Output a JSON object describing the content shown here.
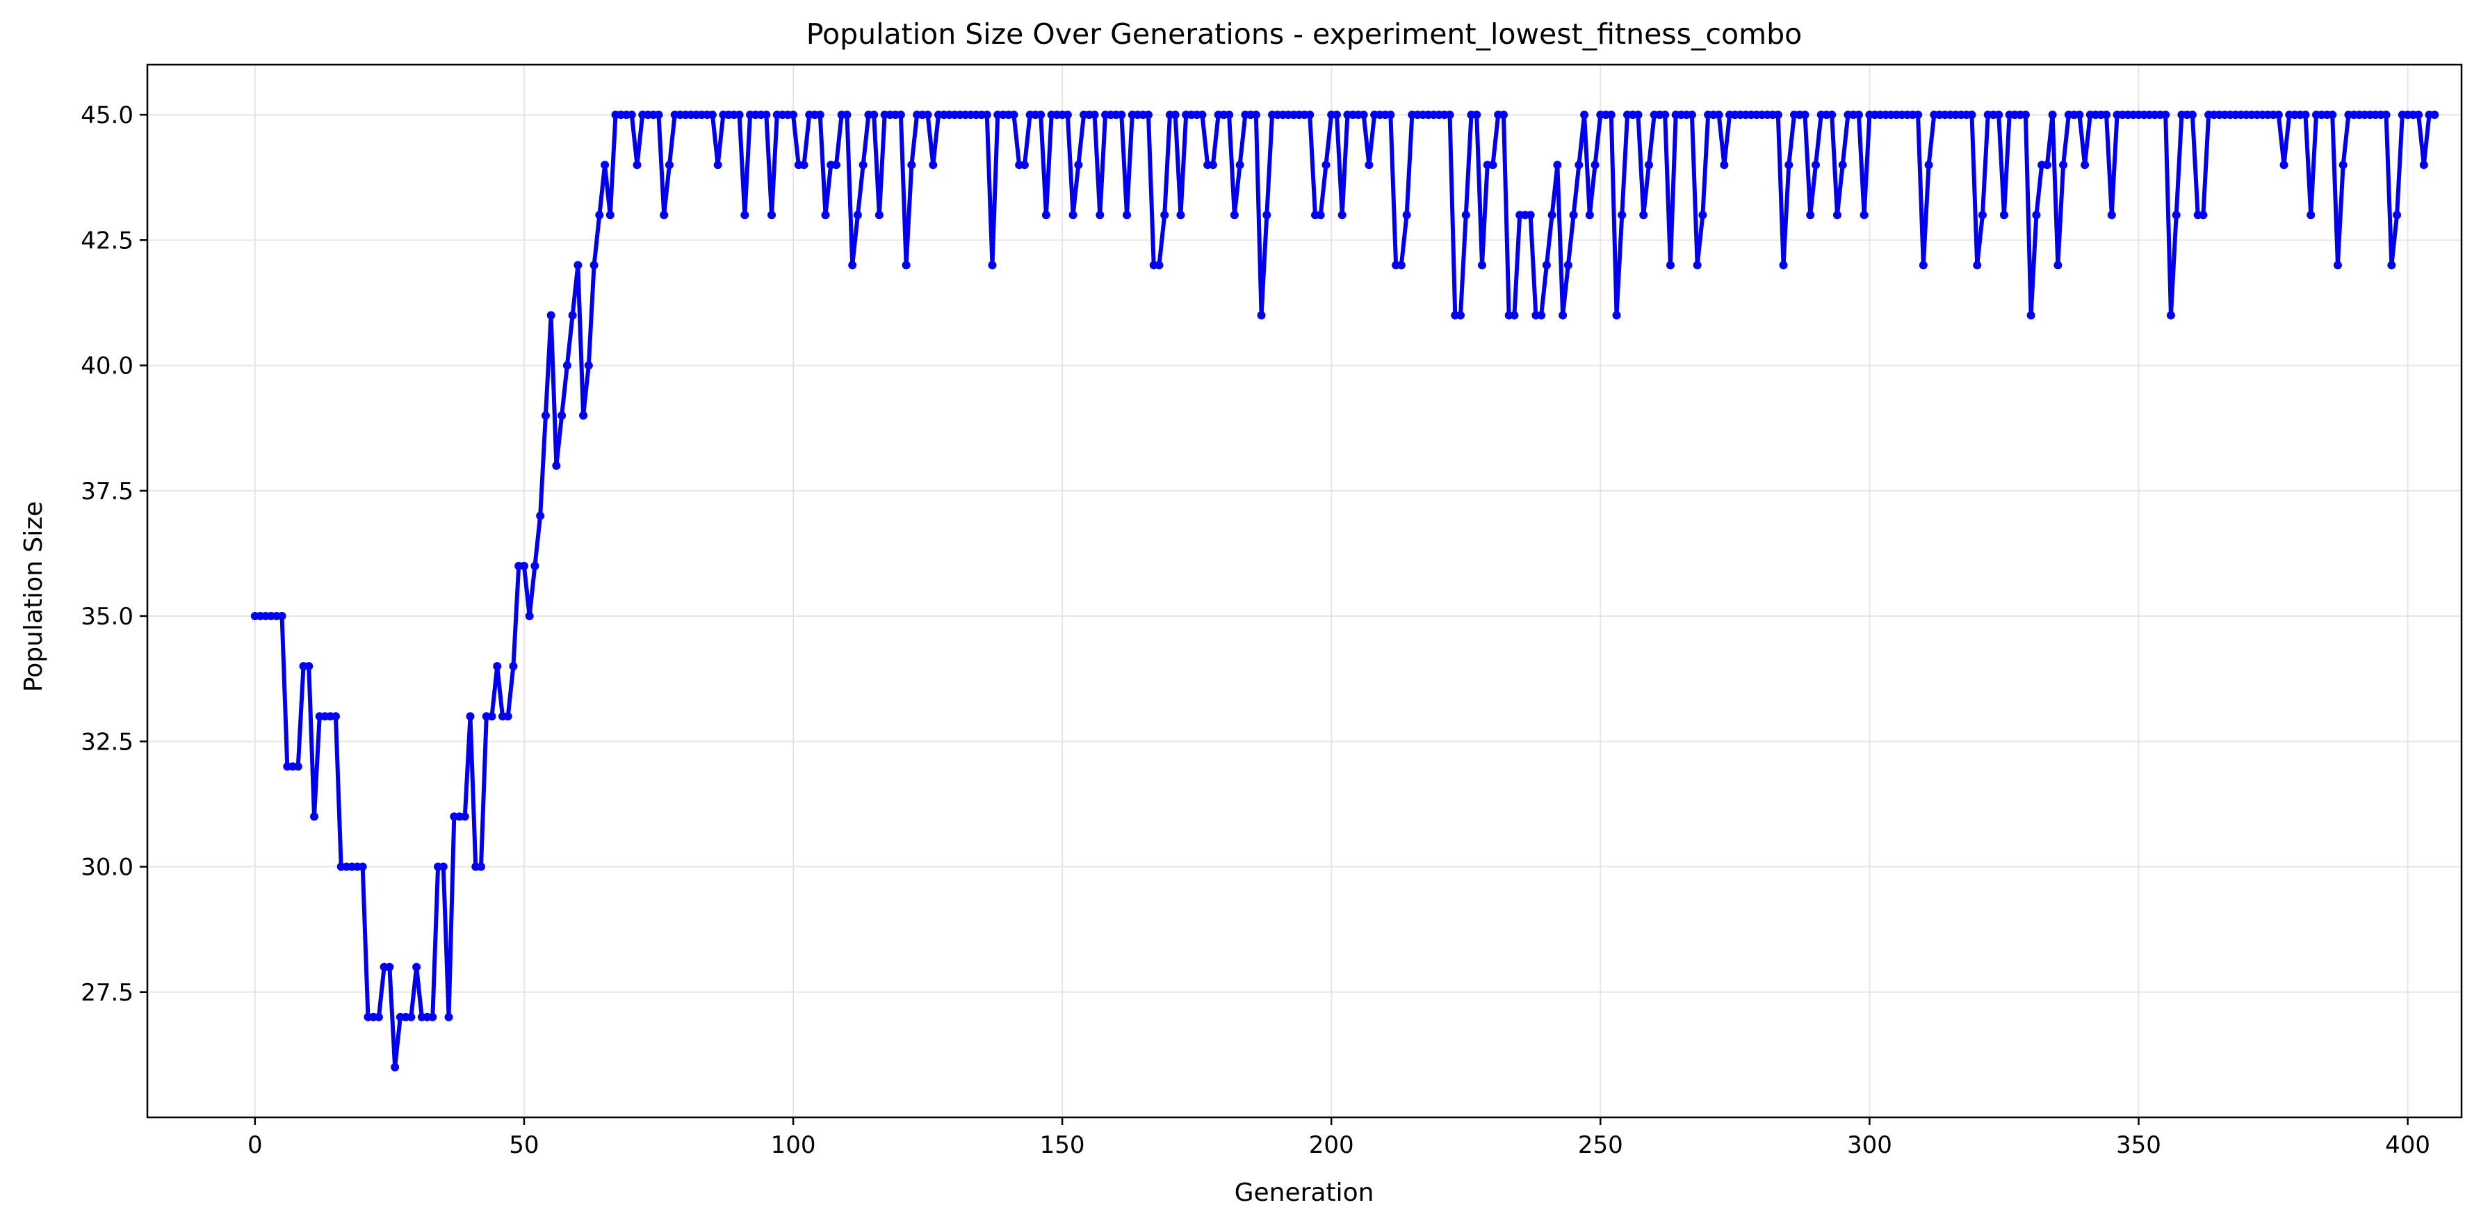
{
  "chart_data": {
    "type": "line",
    "title": "Population Size Over Generations - experiment_lowest_fitness_combo",
    "xlabel": "Generation",
    "ylabel": "Population Size",
    "xlim": [
      -20,
      410
    ],
    "ylim": [
      25.0,
      46.0
    ],
    "xticks": [
      0,
      50,
      100,
      150,
      200,
      250,
      300,
      350,
      400
    ],
    "yticks": [
      27.5,
      30.0,
      32.5,
      35.0,
      37.5,
      40.0,
      42.5,
      45.0
    ],
    "grid": true,
    "series": [
      {
        "name": "Population Size",
        "color": "#0000ee",
        "marker": "circle",
        "values": [
          35,
          35,
          35,
          35,
          35,
          35,
          32,
          32,
          32,
          34,
          34,
          31,
          33,
          33,
          33,
          33,
          30,
          30,
          30,
          30,
          30,
          27,
          27,
          27,
          28,
          28,
          26,
          27,
          27,
          27,
          28,
          27,
          27,
          27,
          30,
          30,
          27,
          31,
          31,
          31,
          33,
          30,
          30,
          33,
          33,
          34,
          33,
          33,
          34,
          36,
          36,
          35,
          36,
          37,
          39,
          41,
          38,
          39,
          40,
          41,
          42,
          39,
          40,
          42,
          43,
          44,
          43,
          45,
          45,
          45,
          45,
          44,
          45,
          45,
          45,
          45,
          43,
          44,
          45,
          45,
          45,
          45,
          45,
          45,
          45,
          45,
          44,
          45,
          45,
          45,
          45,
          43,
          45,
          45,
          45,
          45,
          43,
          45,
          45,
          45,
          45,
          44,
          44,
          45,
          45,
          45,
          43,
          44,
          44,
          45,
          45,
          42,
          43,
          44,
          45,
          45,
          43,
          45,
          45,
          45,
          45,
          42,
          44,
          45,
          45,
          45,
          44,
          45,
          45,
          45,
          45,
          45,
          45,
          45,
          45,
          45,
          45,
          42,
          45,
          45,
          45,
          45,
          44,
          44,
          45,
          45,
          45,
          43,
          45,
          45,
          45,
          45,
          43,
          44,
          45,
          45,
          45,
          43,
          45,
          45,
          45,
          45,
          43,
          45,
          45,
          45,
          45,
          42,
          42,
          43,
          45,
          45,
          43,
          45,
          45,
          45,
          45,
          44,
          44,
          45,
          45,
          45,
          43,
          44,
          45,
          45,
          45,
          41,
          43,
          45,
          45,
          45,
          45,
          45,
          45,
          45,
          45,
          43,
          43,
          44,
          45,
          45,
          43,
          45,
          45,
          45,
          45,
          44,
          45,
          45,
          45,
          45,
          42,
          42,
          43,
          45,
          45,
          45,
          45,
          45,
          45,
          45,
          45,
          41,
          41,
          43,
          45,
          45,
          42,
          44,
          44,
          45,
          45,
          41,
          41,
          43,
          43,
          43,
          41,
          41,
          42,
          43,
          44,
          41,
          42,
          43,
          44,
          45,
          43,
          44,
          45,
          45,
          45,
          41,
          43,
          45,
          45,
          45,
          43,
          44,
          45,
          45,
          45,
          42,
          45,
          45,
          45,
          45,
          42,
          43,
          45,
          45,
          45,
          44,
          45,
          45,
          45,
          45,
          45,
          45,
          45,
          45,
          45,
          45,
          42,
          44,
          45,
          45,
          45,
          43,
          44,
          45,
          45,
          45,
          43,
          44,
          45,
          45,
          45,
          43,
          45,
          45,
          45,
          45,
          45,
          45,
          45,
          45,
          45,
          45,
          42,
          44,
          45,
          45,
          45,
          45,
          45,
          45,
          45,
          45,
          42,
          43,
          45,
          45,
          45,
          43,
          45,
          45,
          45,
          45,
          41,
          43,
          44,
          44,
          45,
          42,
          44,
          45,
          45,
          45,
          44,
          45,
          45,
          45,
          45,
          43,
          45,
          45,
          45,
          45,
          45,
          45,
          45,
          45,
          45,
          45,
          41,
          43,
          45,
          45,
          45,
          43,
          43,
          45,
          45,
          45,
          45,
          45,
          45,
          45,
          45,
          45,
          45,
          45,
          45,
          45,
          45,
          44,
          45,
          45,
          45,
          45,
          43,
          45,
          45,
          45,
          45,
          42,
          44,
          45,
          45,
          45,
          45,
          45,
          45,
          45,
          45,
          42,
          43,
          45,
          45,
          45,
          45,
          44,
          45,
          45
        ]
      }
    ]
  }
}
